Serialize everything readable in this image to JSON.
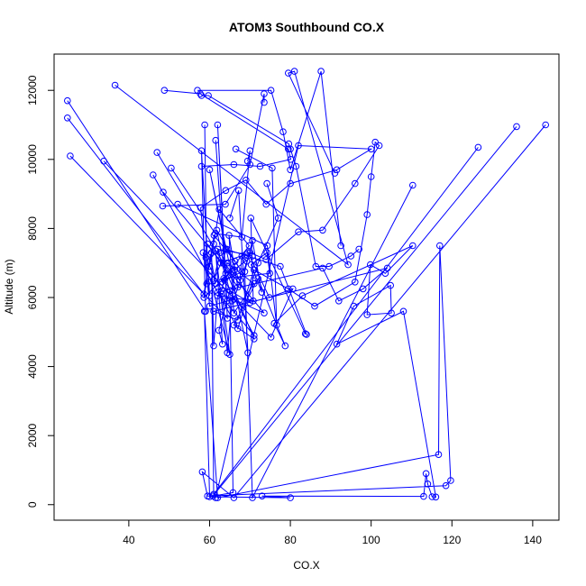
{
  "chart_data": {
    "type": "line",
    "title": "ATOM3 Southbound CO.X",
    "xlabel": "CO.X",
    "ylabel": "Altitude (m)",
    "xlim": [
      21.5,
      146.5
    ],
    "ylim": [
      -450,
      13050
    ],
    "x_ticks": [
      40,
      60,
      80,
      100,
      120,
      140
    ],
    "x_tick_labels": [
      "40",
      "60",
      "80",
      "100",
      "120",
      "140"
    ],
    "y_ticks": [
      0,
      2000,
      4000,
      6000,
      8000,
      10000,
      12000
    ],
    "y_tick_labels": [
      "0",
      "2000",
      "4000",
      "6000",
      "8000",
      "10000",
      "12000"
    ],
    "grid": false,
    "legend": "none",
    "line_color": "#0000ff",
    "marker": "open-circle",
    "series": [
      {
        "x": [
          143.2,
          66.0,
          58.2,
          59.5,
          118.5,
          119.7,
          117.0,
          116.7,
          62.0,
          58.7,
          60.0,
          80.0,
          73.0,
          113.0,
          113.6,
          114.0,
          115.1,
          116.0,
          108.0,
          91.5,
          95.7,
          104.8,
          105.0,
          99.0,
          99.8,
          103.5,
          110.3,
          83.0,
          76.0,
          78.7,
          72.0,
          66.0,
          71.0,
          64.5,
          63.7,
          71.0,
          62.0,
          88.0,
          92.0,
          98.0,
          104.0,
          61.0,
          67.0,
          71.0,
          79.5,
          86.0,
          96.0,
          99.0,
          100.0,
          101.0,
          102.0,
          96.0,
          88.0,
          82.0,
          74.0,
          70.0,
          66.0,
          60.0,
          57.8,
          64.0,
          69.0,
          74.0,
          80.0,
          91.5,
          100.0,
          82.0,
          61.5
        ],
        "y": [
          11000,
          200,
          950,
          250,
          550,
          700,
          7500,
          1450,
          200,
          5600,
          230,
          200,
          250,
          240,
          900,
          600,
          230,
          220,
          5600,
          4650,
          5750,
          6350,
          5550,
          5500,
          6950,
          6700,
          7500,
          6050,
          5250,
          4600,
          6550,
          5200,
          4800,
          6650,
          6500,
          4900,
          6150,
          6850,
          5900,
          6250,
          6850,
          5600,
          5350,
          6800,
          6250,
          5750,
          6450,
          8400,
          9500,
          10500,
          10400,
          9300,
          7950,
          7900,
          7100,
          7300,
          5950,
          5750,
          8600,
          9100,
          9400,
          8700,
          9300,
          9700,
          10300,
          10400,
          200
        ]
      },
      {
        "x": [
          136.0,
          60.8,
          65.8,
          65.0,
          62.3,
          63.2,
          61.5,
          64.4,
          66.3,
          65.5,
          66.2,
          70.0,
          65.0,
          62.0,
          69.0,
          62.8,
          59.5,
          67.0,
          64.8,
          66.0,
          71.0,
          64.4,
          63.0,
          60.0,
          61.0,
          62.4,
          69.8,
          63.0,
          68.0,
          64.3,
          61.0,
          62.6
        ],
        "y": [
          10950,
          250,
          350,
          6200,
          5050,
          4650,
          7350,
          4400,
          6900,
          5900,
          6800,
          5850,
          6200,
          7400,
          7250,
          7000,
          7550,
          6300,
          7800,
          5550,
          6400,
          7000,
          6200,
          6900,
          7550,
          8550,
          7500,
          6450,
          6750,
          7400,
          6500,
          7300
        ]
      },
      {
        "x": [
          126.5,
          61.0,
          60.5,
          61.0,
          62.0,
          70.8,
          70.2,
          83.7,
          84.0,
          77.5,
          64.0,
          60.0,
          69.5,
          67.2,
          65.0
        ],
        "y": [
          10350,
          300,
          7300,
          4600,
          6050,
          5900,
          8300,
          4950,
          4930,
          6900,
          7400,
          9700,
          4400,
          9100,
          8300
        ]
      },
      {
        "x": [
          110.3,
          70.6,
          68.7,
          70.6,
          72.9,
          70.3,
          74.2,
          74.9,
          63.5,
          58.6,
          61.1,
          66.3,
          61.8,
          64.0,
          65.5,
          70.6
        ],
        "y": [
          9250,
          200,
          6750,
          7650,
          6150,
          6950,
          7300,
          6700,
          6550,
          6000,
          7800,
          7050,
          7950,
          6700,
          6750,
          7200
        ]
      },
      {
        "x": [
          24.8,
          59.0,
          58.0,
          60.0,
          58.4,
          59.1
        ],
        "y": [
          11700,
          5600,
          10250,
          6050,
          7300,
          7150
        ]
      },
      {
        "x": [
          24.8,
          58.6,
          60.2,
          61.4,
          59.3,
          58.8
        ],
        "y": [
          11200,
          6100,
          7250,
          6400,
          6400,
          11000
        ]
      },
      {
        "x": [
          25.5,
          64.4,
          62.0,
          64.3,
          61.5
        ],
        "y": [
          10100,
          5400,
          11000,
          5900,
          10550
        ]
      },
      {
        "x": [
          33.8,
          75.2,
          80.6,
          74.8,
          69.5
        ],
        "y": [
          9950,
          4850,
          6250,
          6000,
          7300
        ]
      },
      {
        "x": [
          36.6,
          94.3,
          81.0,
          79.5,
          91.0
        ],
        "y": [
          12150,
          6950,
          12550,
          12500,
          9600
        ]
      },
      {
        "x": [
          47.0,
          63.4,
          67.5,
          68.0,
          69.2
        ],
        "y": [
          10200,
          7000,
          6500,
          7200,
          7050
        ]
      },
      {
        "x": [
          48.8,
          57.7,
          79.5,
          80.1,
          72.5,
          66.0,
          58.0
        ],
        "y": [
          12000,
          11900,
          10300,
          10000,
          9800,
          9850,
          9800
        ]
      },
      {
        "x": [
          50.5,
          61.4,
          68.0,
          70.0,
          69.4
        ],
        "y": [
          9750,
          7850,
          7750,
          10250,
          9950
        ]
      },
      {
        "x": [
          52.1,
          74.3,
          76.6,
          75.5,
          66.5
        ],
        "y": [
          8700,
          7500,
          5200,
          9750,
          10300
        ]
      },
      {
        "x": [
          46.0,
          67.0,
          72.0,
          77.0,
          74.2
        ],
        "y": [
          9550,
          5100,
          7000,
          8300,
          9300
        ]
      },
      {
        "x": [
          48.5,
          73.5,
          63.0,
          65.0,
          60.0
        ],
        "y": [
          9050,
          5550,
          6100,
          4350,
          6600
        ]
      },
      {
        "x": [
          48.4,
          63.9,
          70.0,
          73.5,
          73.5
        ],
        "y": [
          8650,
          8700,
          9850,
          11900,
          11650
        ]
      },
      {
        "x": [
          57.0,
          75.2,
          78.2,
          80.0,
          87.6,
          92.5
        ],
        "y": [
          12000,
          12000,
          10800,
          9700,
          12550,
          7500
        ]
      },
      {
        "x": [
          58.0,
          59.7,
          79.6,
          80.0,
          81.4,
          86.3,
          89.6,
          95.0,
          97.0
        ],
        "y": [
          11850,
          11850,
          10450,
          10300,
          9800,
          6900,
          6900,
          7200,
          7400
        ]
      }
    ]
  }
}
